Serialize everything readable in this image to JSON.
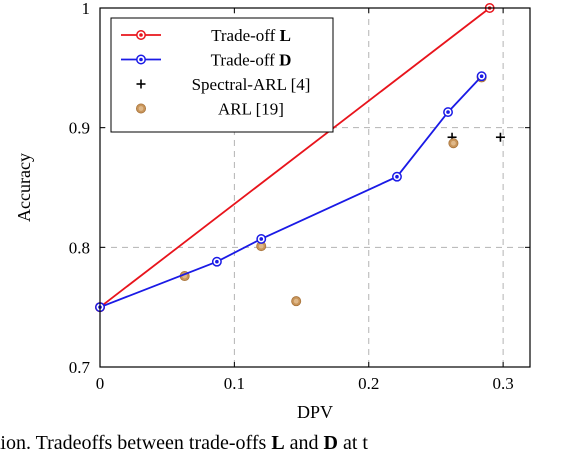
{
  "chart_data": {
    "type": "line",
    "xlabel": "DPV",
    "ylabel": "Accuracy",
    "xlim": [
      0,
      0.32
    ],
    "ylim": [
      0.7,
      1.0
    ],
    "xticks": [
      {
        "value": 0,
        "label": "0"
      },
      {
        "value": 0.1,
        "label": "0.1"
      },
      {
        "value": 0.2,
        "label": "0.2"
      },
      {
        "value": 0.3,
        "label": "0.3"
      }
    ],
    "yticks": [
      {
        "value": 0.7,
        "label": "0.7"
      },
      {
        "value": 0.8,
        "label": "0.8"
      },
      {
        "value": 0.9,
        "label": "0.9"
      },
      {
        "value": 1.0,
        "label": "1"
      }
    ],
    "grid": true,
    "legend_position": "top-left",
    "series": [
      {
        "name": "Trade-off",
        "name_bold": "L",
        "kind": "line",
        "color": "#e8141c",
        "marker": "circle",
        "points": [
          [
            0,
            0.75
          ],
          [
            0.29,
            1.0
          ]
        ]
      },
      {
        "name": "Trade-off",
        "name_bold": "D",
        "kind": "line",
        "color": "#1a1ae6",
        "marker": "circle",
        "points": [
          [
            0,
            0.75
          ],
          [
            0.087,
            0.788
          ],
          [
            0.12,
            0.807
          ],
          [
            0.221,
            0.859
          ],
          [
            0.259,
            0.913
          ],
          [
            0.284,
            0.943
          ]
        ]
      },
      {
        "name": "Spectral-ARL [4]",
        "name_bold": "",
        "kind": "scatter",
        "color": "#000000",
        "marker": "plus",
        "points": [
          [
            0.262,
            0.892
          ],
          [
            0.298,
            0.892
          ]
        ]
      },
      {
        "name": "ARL [19]",
        "name_bold": "",
        "kind": "scatter",
        "color": "#c8955a",
        "marker": "circle",
        "points": [
          [
            0,
            0.75
          ],
          [
            0.063,
            0.776
          ],
          [
            0.12,
            0.801
          ],
          [
            0.146,
            0.755
          ],
          [
            0.263,
            0.887
          ],
          [
            0.284,
            0.942
          ]
        ]
      }
    ]
  },
  "caption": {
    "prefix": "ation.  Tradeoffs  between  trade-offs ",
    "bold_1": "L",
    "middle": " and ",
    "bold_2": "D",
    "suffix": " at t"
  }
}
